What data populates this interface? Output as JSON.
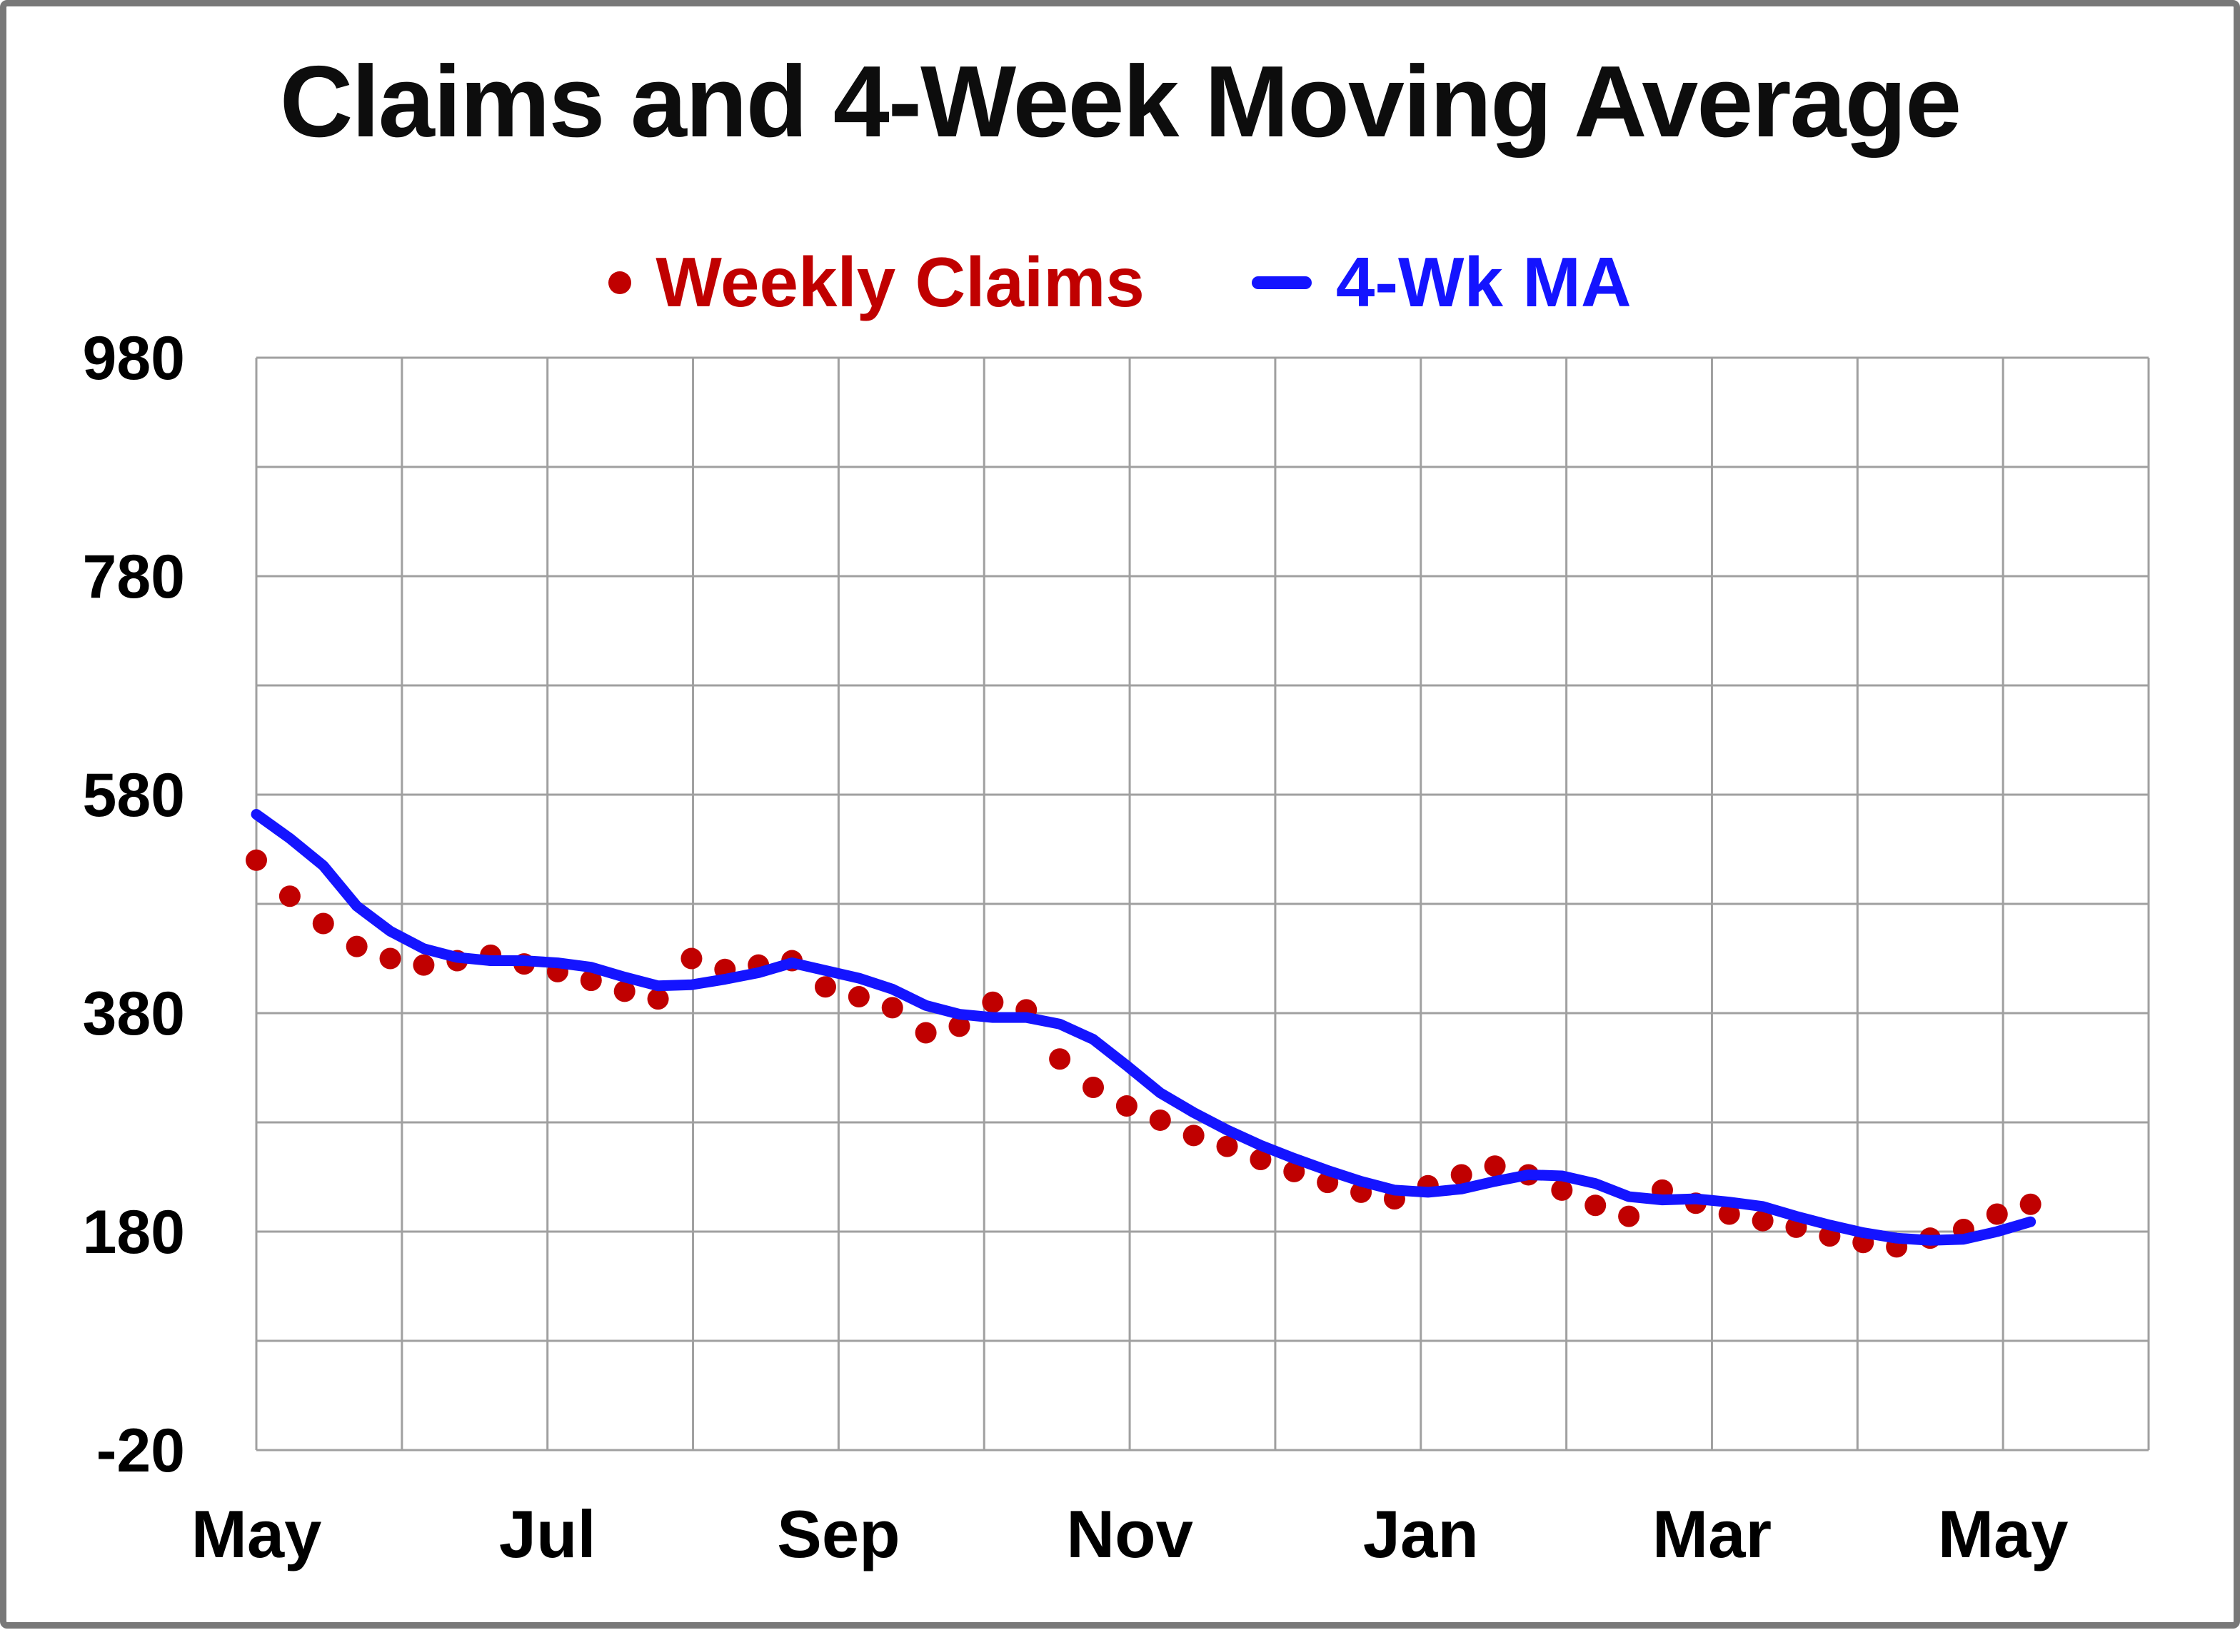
{
  "chart_data": {
    "type": "scatter+line",
    "title": "Claims and 4-Week Moving Average",
    "xlabel": "",
    "ylabel": "",
    "ylim": [
      -20,
      980
    ],
    "y_grid_step": 100,
    "y_tick_values": [
      980,
      780,
      580,
      380,
      180,
      -20
    ],
    "x_months_total": 13,
    "x_tick_labels": [
      {
        "label": "May",
        "month": 0
      },
      {
        "label": "Jul",
        "month": 2
      },
      {
        "label": "Sep",
        "month": 4
      },
      {
        "label": "Nov",
        "month": 6
      },
      {
        "label": "Jan",
        "month": 8
      },
      {
        "label": "Mar",
        "month": 10
      },
      {
        "label": "May",
        "month": 12
      }
    ],
    "grid": true,
    "legend_position": "top-center",
    "colors": {
      "grid": "#A0A0A0",
      "axis_text": "#000000",
      "title": "#0d0d0d"
    },
    "series": [
      {
        "name": "Weekly Claims",
        "type": "scatter",
        "color": "#C00000",
        "cadence": "weekly",
        "values": [
          520,
          487,
          462,
          441,
          430,
          424,
          428,
          433,
          425,
          418,
          410,
          400,
          393,
          430,
          420,
          424,
          428,
          404,
          395,
          385,
          362,
          368,
          390,
          383,
          338,
          312,
          295,
          282,
          268,
          258,
          246,
          235,
          225,
          216,
          210,
          222,
          232,
          240,
          232,
          218,
          204,
          194,
          218,
          206,
          196,
          190,
          184,
          176,
          170,
          166,
          174,
          182,
          196,
          205
        ]
      },
      {
        "name": "4-Wk MA",
        "type": "line",
        "color": "#1414FF",
        "cadence": "weekly",
        "values": [
          562,
          540,
          515,
          478,
          455,
          439,
          431,
          428,
          428,
          426,
          422,
          413,
          405,
          406,
          411,
          417,
          426,
          419,
          412,
          402,
          387,
          379,
          376,
          376,
          370,
          356,
          332,
          307,
          289,
          273,
          259,
          247,
          236,
          226,
          218,
          216,
          219,
          226,
          232,
          231,
          224,
          212,
          209,
          210,
          207,
          203,
          194,
          186,
          179,
          174,
          172,
          173,
          180,
          189
        ]
      }
    ]
  }
}
